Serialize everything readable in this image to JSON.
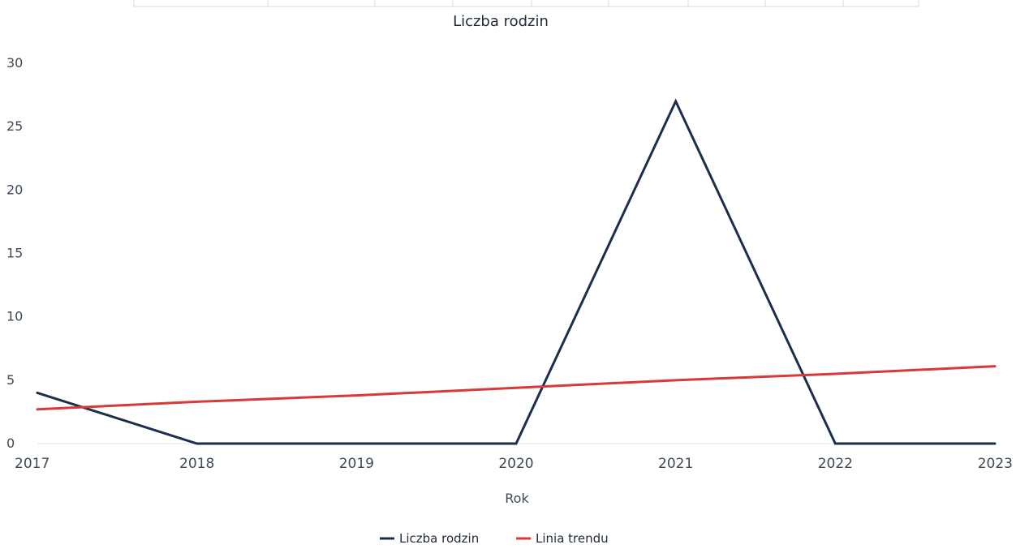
{
  "chart_data": {
    "type": "line",
    "title": "Liczba rodzin",
    "xlabel": "Rok",
    "ylabel": "",
    "x": [
      "2017",
      "2018",
      "2019",
      "2020",
      "2021",
      "2022",
      "2023"
    ],
    "ylim": [
      0,
      30
    ],
    "yticks": [
      "0",
      "5",
      "10",
      "15",
      "20",
      "25",
      "30"
    ],
    "series": [
      {
        "name": "Liczba rodzin",
        "values": [
          4,
          0,
          0,
          0,
          27,
          0,
          0
        ],
        "color": "#1b2f4a"
      },
      {
        "name": "Linia trendu",
        "values": [
          2.7,
          3.3,
          3.8,
          4.4,
          5.0,
          5.5,
          6.1
        ],
        "color": "#d63a3a"
      }
    ],
    "legend_position": "bottom-center",
    "grid": false
  }
}
